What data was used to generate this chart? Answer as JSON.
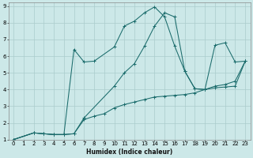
{
  "title": "",
  "xlabel": "Humidex (Indice chaleur)",
  "ylabel": "",
  "bg_color": "#cce8e8",
  "grid_color": "#aacccc",
  "line_color": "#1a6b6b",
  "xlim": [
    -0.5,
    23.5
  ],
  "ylim": [
    1,
    9.2
  ],
  "xticks": [
    0,
    1,
    2,
    3,
    4,
    5,
    6,
    7,
    8,
    9,
    10,
    11,
    12,
    13,
    14,
    15,
    16,
    17,
    18,
    19,
    20,
    21,
    22,
    23
  ],
  "yticks": [
    1,
    2,
    3,
    4,
    5,
    6,
    7,
    8,
    9
  ],
  "lines": [
    {
      "x": [
        0,
        2,
        3,
        4,
        5,
        6,
        7,
        8,
        9,
        10,
        11,
        12,
        13,
        14,
        15,
        16,
        17,
        18,
        19,
        20,
        21,
        22,
        23
      ],
      "y": [
        1,
        1.4,
        1.35,
        1.3,
        1.3,
        1.35,
        2.2,
        2.4,
        2.55,
        2.9,
        3.1,
        3.25,
        3.4,
        3.55,
        3.6,
        3.65,
        3.7,
        3.8,
        4.0,
        4.2,
        4.3,
        4.5,
        5.7
      ]
    },
    {
      "x": [
        0,
        2,
        3,
        4,
        5,
        6,
        7,
        10,
        11,
        12,
        13,
        14,
        15,
        16,
        17,
        18,
        19,
        20,
        21,
        22,
        23
      ],
      "y": [
        1,
        1.4,
        1.35,
        1.3,
        1.3,
        1.35,
        2.3,
        4.2,
        5.0,
        5.55,
        6.6,
        7.8,
        8.6,
        8.35,
        5.1,
        4.05,
        4.0,
        4.1,
        4.15,
        4.2,
        5.7
      ]
    },
    {
      "x": [
        0,
        2,
        3,
        4,
        5,
        6,
        7,
        8,
        10,
        11,
        12,
        13,
        14,
        15,
        16,
        17,
        18,
        19,
        20,
        21,
        22,
        23
      ],
      "y": [
        1,
        1.4,
        1.35,
        1.3,
        1.3,
        6.4,
        5.65,
        5.7,
        6.55,
        7.8,
        8.1,
        8.6,
        8.95,
        8.35,
        6.6,
        5.1,
        4.05,
        4.0,
        6.65,
        6.8,
        5.65,
        5.7
      ]
    }
  ]
}
